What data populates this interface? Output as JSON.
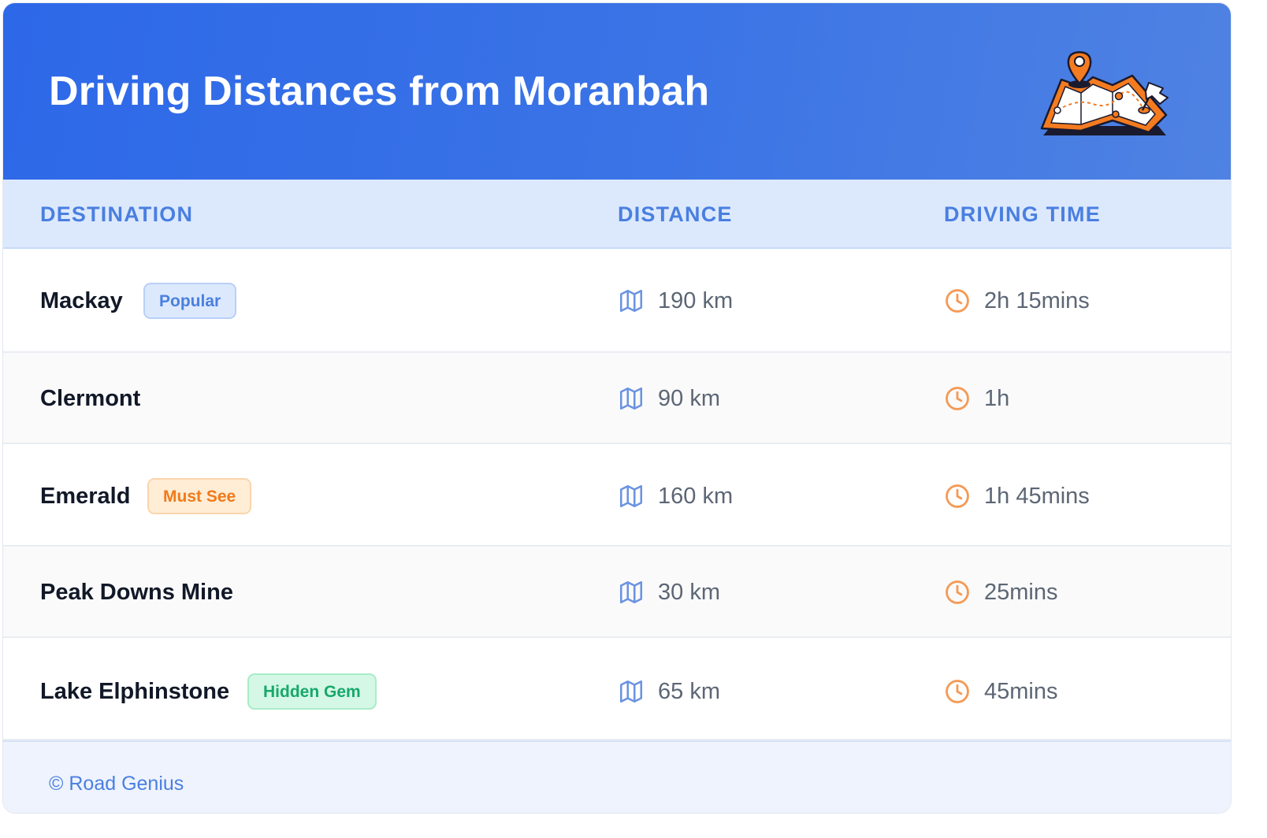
{
  "header": {
    "title": "Driving Distances from Moranbah",
    "illustration_icon": "map-pin-illustration-icon"
  },
  "table": {
    "columns": [
      "DESTINATION",
      "DISTANCE",
      "DRIVING TIME"
    ],
    "rows": [
      {
        "destination": "Mackay",
        "badge": "Popular",
        "distance": "190 km",
        "time": "2h 15mins"
      },
      {
        "destination": "Clermont",
        "badge": "",
        "distance": "90 km",
        "time": "1h"
      },
      {
        "destination": "Emerald",
        "badge": "Must See",
        "distance": "160 km",
        "time": "1h 45mins"
      },
      {
        "destination": "Peak Downs Mine",
        "badge": "",
        "distance": "30 km",
        "time": "25mins"
      },
      {
        "destination": "Lake Elphinstone",
        "badge": "Hidden Gem",
        "distance": "65 km",
        "time": "45mins"
      }
    ],
    "distance_icon": "map-icon",
    "time_icon": "clock-icon"
  },
  "footer": {
    "text": "© Road Genius"
  },
  "colors": {
    "header_gradient_start": "#2d68e8",
    "header_gradient_end": "#4f82e2",
    "accent_blue": "#4a7fe0",
    "accent_orange": "#f07a1a",
    "accent_green": "#17a86a"
  }
}
